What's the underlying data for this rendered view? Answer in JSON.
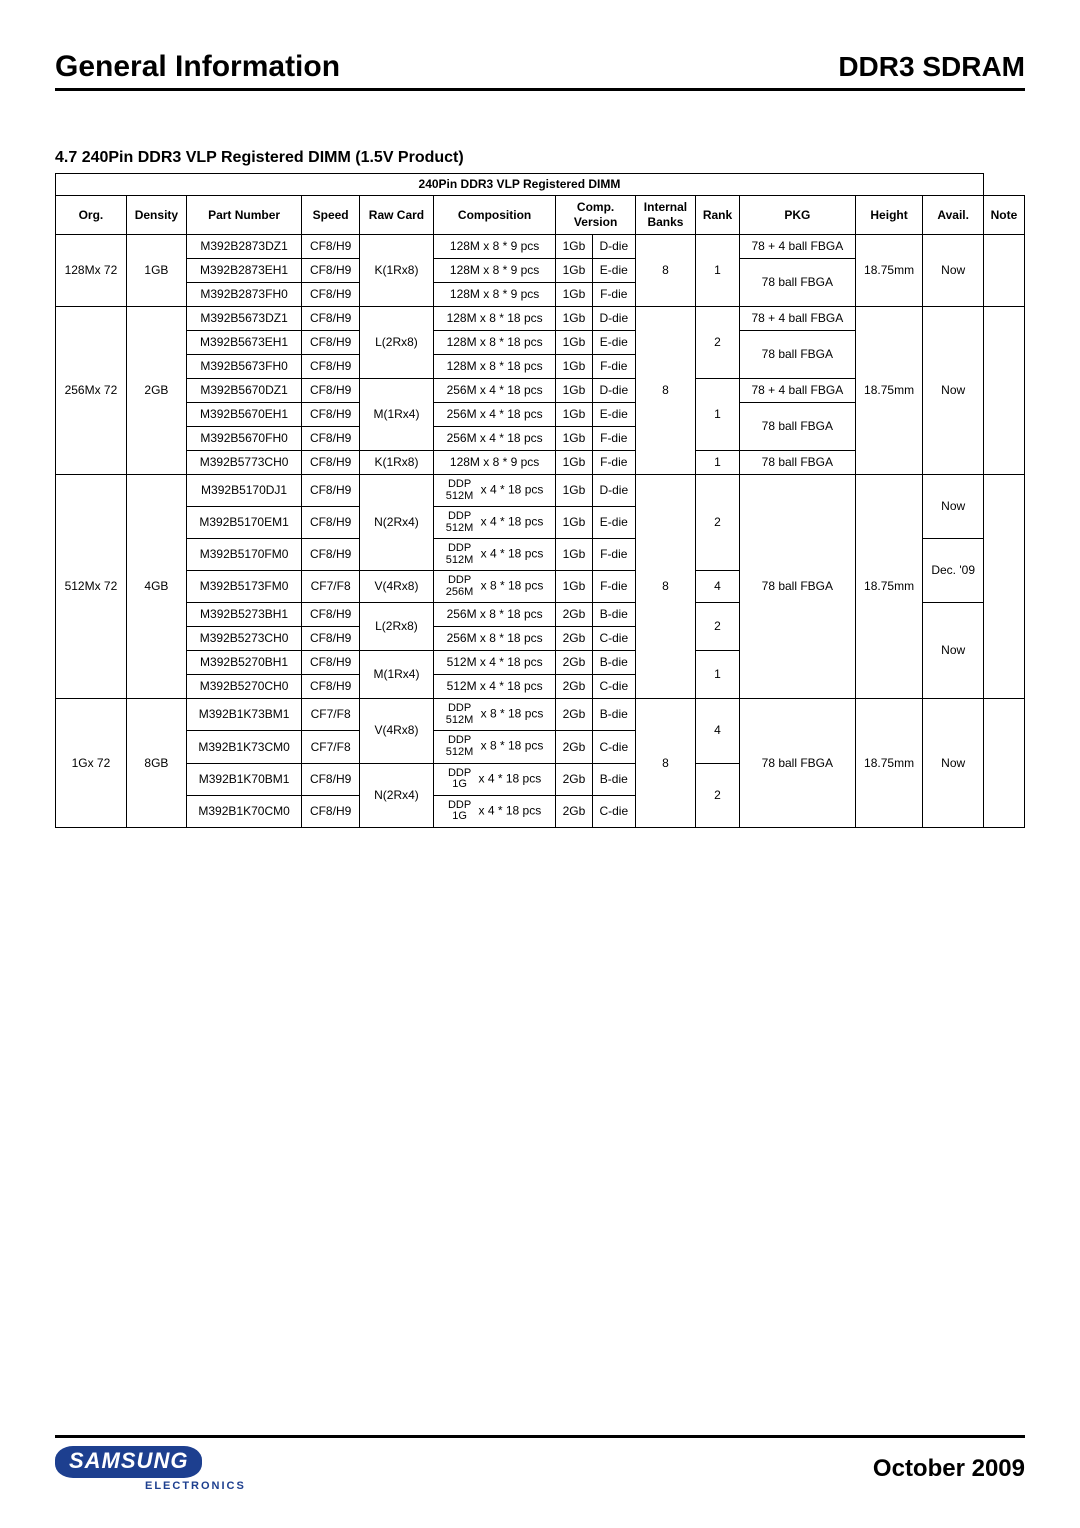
{
  "header": {
    "left": "General Information",
    "right": "DDR3 SDRAM"
  },
  "section": "4.7 240Pin DDR3 VLP Registered DIMM (1.5V Product)",
  "table_title": "240Pin DDR3 VLP Registered DIMM",
  "columns": [
    "Org.",
    "Density",
    "Part Number",
    "Speed",
    "Raw Card",
    "Composition",
    "Comp. Version",
    "Internal Banks",
    "Rank",
    "PKG",
    "Height",
    "Avail.",
    "Note"
  ],
  "footer_date": "October 2009",
  "logo_text": "SAMSUNG",
  "logo_sub": "ELECTRONICS",
  "groups": [
    {
      "org": "128Mx 72",
      "density": "1GB",
      "banks": "8",
      "height": "18.75mm",
      "avail": "Now",
      "avail_span": 3,
      "rank_blocks": [
        {
          "rank": "1",
          "span": 3
        }
      ],
      "rawcard_blocks": [
        {
          "rc": "K(1Rx8)",
          "span": 3
        }
      ],
      "pkg_blocks": [
        {
          "pkg": "78 + 4 ball FBGA",
          "span": 1
        },
        {
          "pkg": "78 ball FBGA",
          "span": 2
        }
      ],
      "rows": [
        {
          "pn": "M392B2873DZ1",
          "sp": "CF8/H9",
          "comp": "128M  x 8  *   9 pcs",
          "cv1": "1Gb",
          "cv2": "D-die"
        },
        {
          "pn": "M392B2873EH1",
          "sp": "CF8/H9",
          "comp": "128M  x 8  *   9 pcs",
          "cv1": "1Gb",
          "cv2": "E-die"
        },
        {
          "pn": "M392B2873FH0",
          "sp": "CF8/H9",
          "comp": "128M  x 8  *   9 pcs",
          "cv1": "1Gb",
          "cv2": "F-die"
        }
      ]
    },
    {
      "org": "256Mx 72",
      "density": "2GB",
      "banks": "8",
      "height": "18.75mm",
      "avail": "Now",
      "avail_span": 7,
      "rank_blocks": [
        {
          "rank": "2",
          "span": 3
        },
        {
          "rank": "1",
          "span": 3
        },
        {
          "rank": "1",
          "span": 1
        }
      ],
      "rawcard_blocks": [
        {
          "rc": "L(2Rx8)",
          "span": 3
        },
        {
          "rc": "M(1Rx4)",
          "span": 3
        },
        {
          "rc": "K(1Rx8)",
          "span": 1
        }
      ],
      "pkg_blocks": [
        {
          "pkg": "78 + 4 ball FBGA",
          "span": 1
        },
        {
          "pkg": "78 ball FBGA",
          "span": 2
        },
        {
          "pkg": "78 + 4 ball FBGA",
          "span": 1
        },
        {
          "pkg": "78 ball FBGA",
          "span": 2
        },
        {
          "pkg": "78 ball FBGA",
          "span": 1
        }
      ],
      "rows": [
        {
          "pn": "M392B5673DZ1",
          "sp": "CF8/H9",
          "comp": "128M  x 8  *  18 pcs",
          "cv1": "1Gb",
          "cv2": "D-die"
        },
        {
          "pn": "M392B5673EH1",
          "sp": "CF8/H9",
          "comp": "128M  x 8  *  18 pcs",
          "cv1": "1Gb",
          "cv2": "E-die"
        },
        {
          "pn": "M392B5673FH0",
          "sp": "CF8/H9",
          "comp": "128M  x 8  *  18 pcs",
          "cv1": "1Gb",
          "cv2": "F-die"
        },
        {
          "pn": "M392B5670DZ1",
          "sp": "CF8/H9",
          "comp": "256M  x 4  *  18 pcs",
          "cv1": "1Gb",
          "cv2": "D-die"
        },
        {
          "pn": "M392B5670EH1",
          "sp": "CF8/H9",
          "comp": "256M  x 4  *  18 pcs",
          "cv1": "1Gb",
          "cv2": "E-die"
        },
        {
          "pn": "M392B5670FH0",
          "sp": "CF8/H9",
          "comp": "256M  x 4  *  18 pcs",
          "cv1": "1Gb",
          "cv2": "F-die"
        },
        {
          "pn": "M392B5773CH0",
          "sp": "CF8/H9",
          "comp": "128M  x 8  *   9 pcs",
          "cv1": "1Gb",
          "cv2": "F-die"
        }
      ]
    },
    {
      "org": "512Mx 72",
      "density": "4GB",
      "banks": "8",
      "height": "18.75mm",
      "avail_blocks": [
        {
          "av": "Now",
          "span": 2
        },
        {
          "av": "Dec. '09",
          "span": 2
        },
        {
          "av": "Now",
          "span": 4
        }
      ],
      "rank_blocks": [
        {
          "rank": "2",
          "span": 3
        },
        {
          "rank": "4",
          "span": 1
        },
        {
          "rank": "2",
          "span": 2
        },
        {
          "rank": "1",
          "span": 2
        }
      ],
      "rawcard_blocks": [
        {
          "rc": "N(2Rx4)",
          "span": 3
        },
        {
          "rc": "V(4Rx8)",
          "span": 1
        },
        {
          "rc": "L(2Rx8)",
          "span": 2
        },
        {
          "rc": "M(1Rx4)",
          "span": 2
        }
      ],
      "pkg_blocks": [
        {
          "pkg": "78 ball FBGA",
          "span": 8
        }
      ],
      "rows": [
        {
          "pn": "M392B5170DJ1",
          "sp": "CF8/H9",
          "ddp": "DDP 512M",
          "comp": "x 4  *  18 pcs",
          "cv1": "1Gb",
          "cv2": "D-die"
        },
        {
          "pn": "M392B5170EM1",
          "sp": "CF8/H9",
          "ddp": "DDP 512M",
          "comp": "x 4  *  18 pcs",
          "cv1": "1Gb",
          "cv2": "E-die"
        },
        {
          "pn": "M392B5170FM0",
          "sp": "CF8/H9",
          "ddp": "DDP 512M",
          "comp": "x 4  *  18 pcs",
          "cv1": "1Gb",
          "cv2": "F-die"
        },
        {
          "pn": "M392B5173FM0",
          "sp": "CF7/F8",
          "ddp": "DDP 256M",
          "comp": "x 8  *  18 pcs",
          "cv1": "1Gb",
          "cv2": "F-die"
        },
        {
          "pn": "M392B5273BH1",
          "sp": "CF8/H9",
          "comp": "256M  x 8  *  18 pcs",
          "cv1": "2Gb",
          "cv2": "B-die"
        },
        {
          "pn": "M392B5273CH0",
          "sp": "CF8/H9",
          "comp": "256M  x 8  *  18 pcs",
          "cv1": "2Gb",
          "cv2": "C-die"
        },
        {
          "pn": "M392B5270BH1",
          "sp": "CF8/H9",
          "comp": "512M  x 4  *  18 pcs",
          "cv1": "2Gb",
          "cv2": "B-die"
        },
        {
          "pn": "M392B5270CH0",
          "sp": "CF8/H9",
          "comp": "512M  x 4  *  18 pcs",
          "cv1": "2Gb",
          "cv2": "C-die"
        }
      ]
    },
    {
      "org": "1Gx 72",
      "density": "8GB",
      "banks": "8",
      "height": "18.75mm",
      "avail": "Now",
      "avail_span": 4,
      "rank_blocks": [
        {
          "rank": "4",
          "span": 2
        },
        {
          "rank": "2",
          "span": 2
        }
      ],
      "rawcard_blocks": [
        {
          "rc": "V(4Rx8)",
          "span": 2
        },
        {
          "rc": "N(2Rx4)",
          "span": 2
        }
      ],
      "pkg_blocks": [
        {
          "pkg": "78 ball FBGA",
          "span": 4
        }
      ],
      "rows": [
        {
          "pn": "M392B1K73BM1",
          "sp": "CF7/F8",
          "ddp": "DDP 512M",
          "comp": "x 8  *  18 pcs",
          "cv1": "2Gb",
          "cv2": "B-die"
        },
        {
          "pn": "M392B1K73CM0",
          "sp": "CF7/F8",
          "ddp": "DDP 512M",
          "comp": "x 8  *  18 pcs",
          "cv1": "2Gb",
          "cv2": "C-die"
        },
        {
          "pn": "M392B1K70BM1",
          "sp": "CF8/H9",
          "ddp": "DDP 1G",
          "comp": "x 4  *  18 pcs",
          "cv1": "2Gb",
          "cv2": "B-die"
        },
        {
          "pn": "M392B1K70CM0",
          "sp": "CF8/H9",
          "ddp": "DDP 1G",
          "comp": "x 4  *  18 pcs",
          "cv1": "2Gb",
          "cv2": "C-die"
        }
      ]
    }
  ]
}
